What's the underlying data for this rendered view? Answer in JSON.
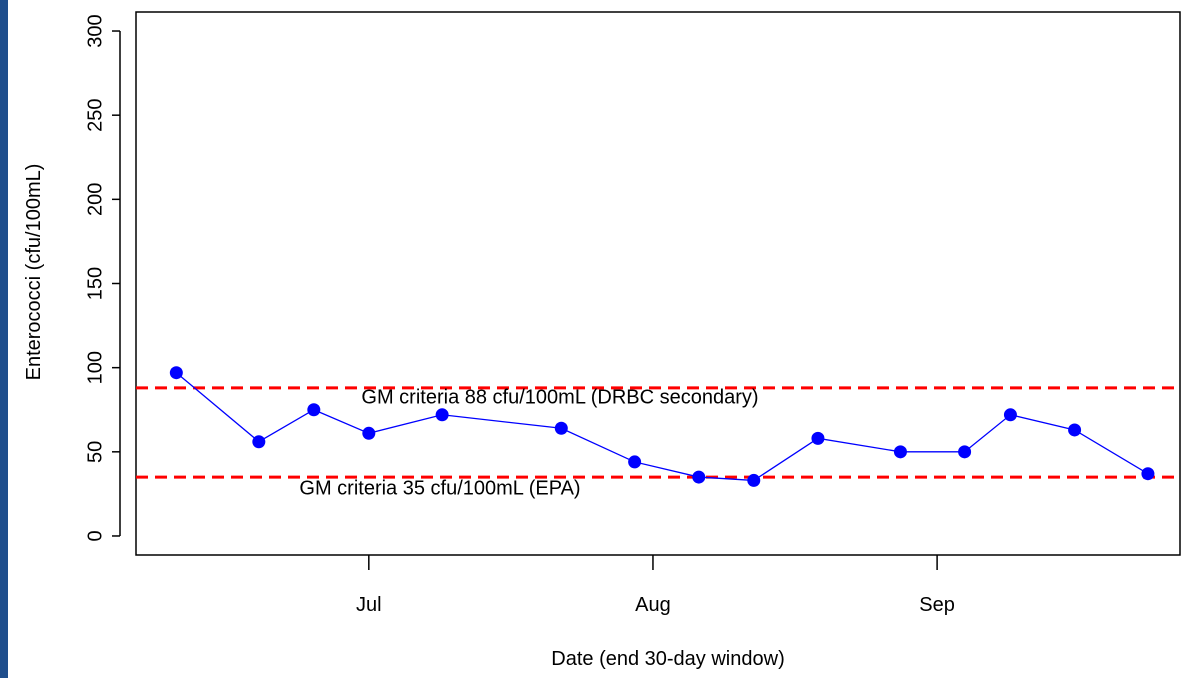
{
  "chart_data": {
    "type": "line",
    "x_label": "Date (end 30-day window)",
    "y_label": "Enterococci (cfu/100mL)",
    "x": [
      161,
      170,
      176,
      182,
      190,
      203,
      211,
      218,
      224,
      231,
      240,
      247,
      252,
      259,
      267
    ],
    "values": [
      97,
      56,
      75,
      61,
      72,
      64,
      44,
      35,
      33,
      58,
      50,
      50,
      72,
      63,
      37
    ],
    "color": "#0000ff",
    "xlim": [
      156.6,
      270.5
    ],
    "xticks": [
      {
        "value": 182,
        "label": "Jul"
      },
      {
        "value": 213,
        "label": "Aug"
      },
      {
        "value": 244,
        "label": "Sep"
      }
    ],
    "ylim": [
      -11.3,
      311.3
    ],
    "yticks": [
      0,
      50,
      100,
      150,
      200,
      250,
      300
    ],
    "reference_lines": [
      {
        "value": 88,
        "label": "GM criteria 88 cfu/100mL (DRBC secondary)",
        "color": "#ff0000"
      },
      {
        "value": 35,
        "label": "GM criteria 35 cfu/100mL (EPA)",
        "color": "#ff0000"
      }
    ]
  }
}
